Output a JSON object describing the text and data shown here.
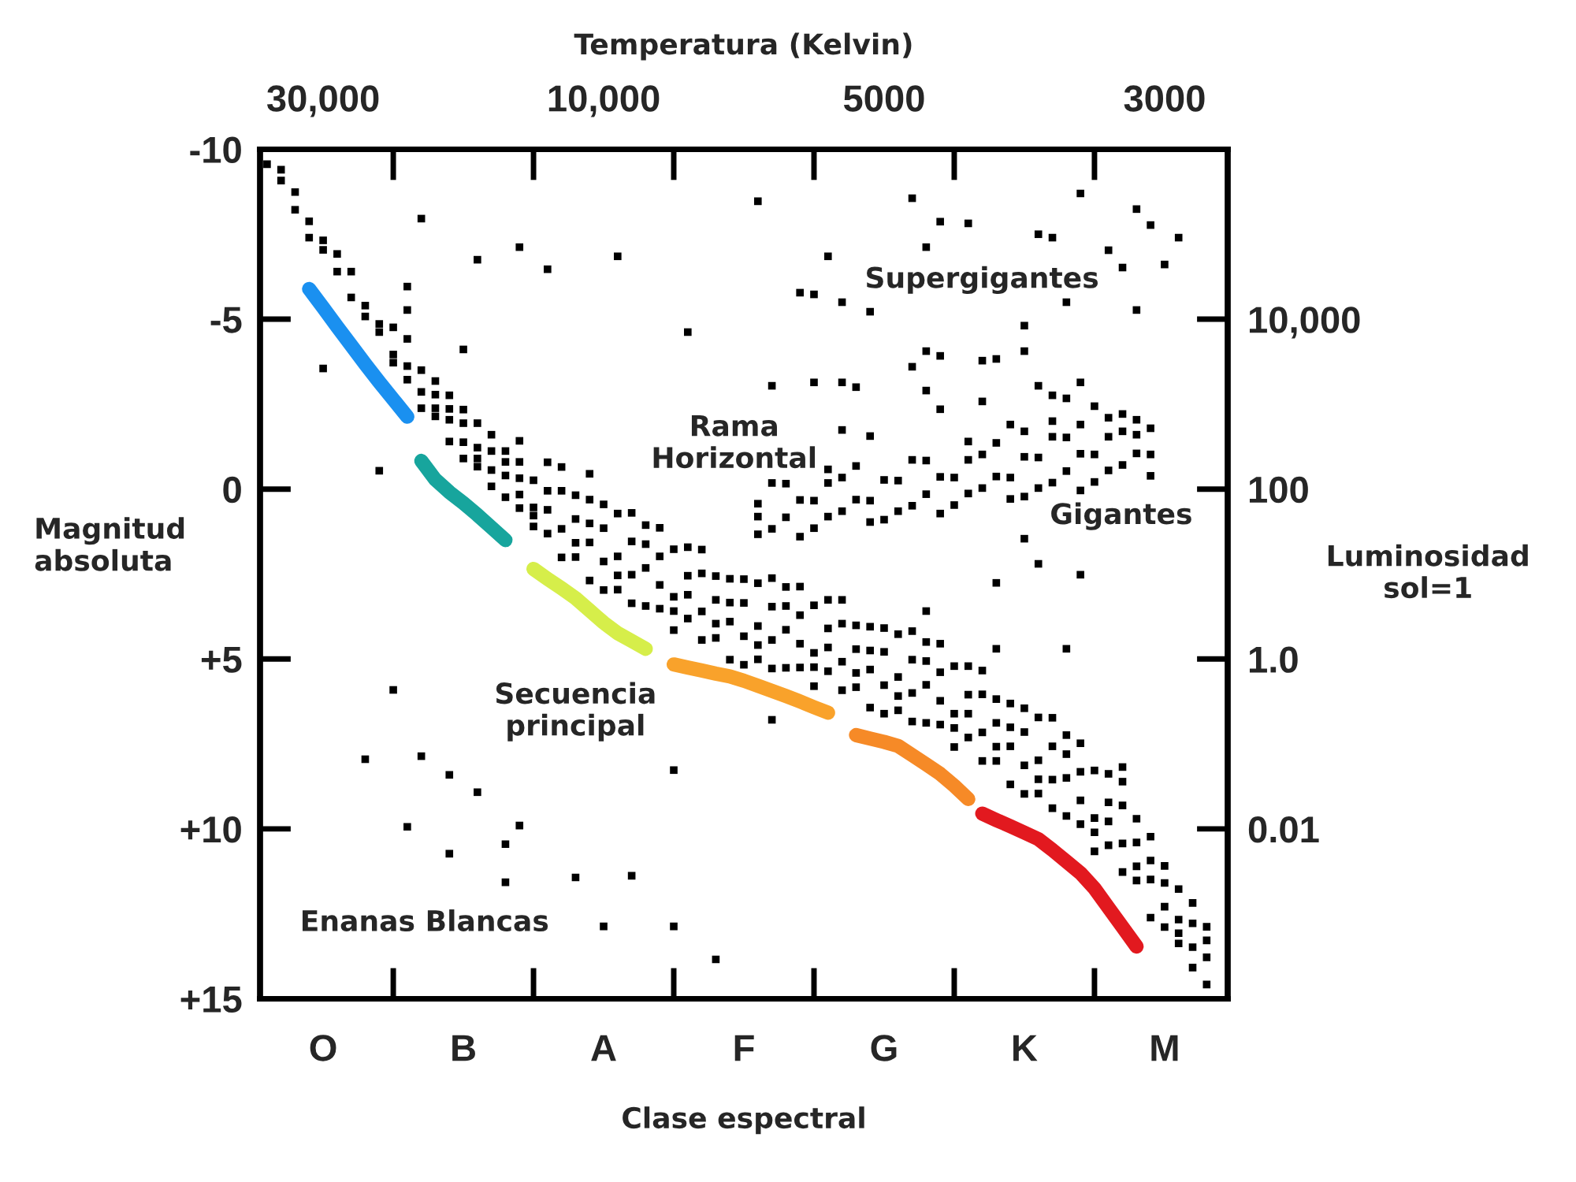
{
  "chart_data": {
    "type": "scatter",
    "x2label": "Temperatura (Kelvin)",
    "xlabel": "Clase espectral",
    "ylabel": "Magnitud\nabsoluta",
    "y2label": "Luminosidad\nsol=1",
    "categories": [
      null,
      null,
      null,
      null,
      "O",
      null,
      null,
      null,
      null,
      null,
      null,
      null,
      null,
      null,
      "B",
      null,
      null,
      null,
      null,
      null,
      null,
      null,
      null,
      null,
      "A",
      null,
      null,
      null,
      null,
      null,
      null,
      null,
      null,
      null,
      "F",
      null,
      null,
      null,
      null,
      null,
      null,
      null,
      null,
      null,
      "G",
      null,
      null,
      null,
      null,
      null,
      null,
      null,
      null,
      null,
      "K",
      null,
      null,
      null,
      null,
      null,
      null,
      null,
      null,
      null,
      "M",
      null,
      null,
      null,
      null
    ],
    "ylim": [
      15,
      -10
    ],
    "yticks": [
      -10,
      -5,
      0,
      {
        "value": 5,
        "label": "+5"
      },
      {
        "value": 10,
        "label": "+10"
      },
      {
        "value": 15,
        "label": "+15"
      }
    ],
    "y2lim": [
      0.0001,
      1000000
    ],
    "y2ticks": [
      {
        "value": 10000,
        "label": "10,000"
      },
      100,
      {
        "value": 1,
        "label": "1.0"
      },
      0.01
    ],
    "log": "y2",
    "series": [
      {
        "color": "#000000",
        "marker": "square",
        "values": [
          -9.56,
          -9.4,
          -8.22,
          -7.88,
          -7.04,
          -6.92,
          -5.64,
          -5.4,
          -4.86,
          -3.72,
          -3.62,
          -3.5,
          -2.14,
          -2.36,
          -1.38,
          -1.94,
          -0.08,
          -0.4,
          -0.32,
          0.78,
          0.61,
          0.05,
          2.0,
          1.01,
          2.13,
          0.72,
          3.36,
          2.32,
          1.98,
          3.59,
          3.11,
          2.48,
          4.38,
          3.34,
          4.33,
          2.77,
          5.28,
          4.14,
          3.71,
          5.24,
          4.66,
          3.96,
          5.83,
          4.75,
          5.77,
          4.27,
          6.84,
          5.76,
          5.39,
          7.03,
          6.61,
          6.04,
          8.0,
          7.01,
          8.13,
          6.72,
          9.39,
          8.5,
          8.32,
          10.1,
          9.78,
          9.31,
          11.52,
          10.93,
          12.29,
          11.77,
          14.08,
          13.78,
          null
        ]
      },
      {
        "color": "#000000",
        "marker": "square",
        "values": [
          null,
          -9.08,
          -8.74,
          -7.4,
          -7.32,
          -6.4,
          -6.4,
          -5.08,
          -4.62,
          -4.76,
          -4.42,
          -2.86,
          -3.18,
          -1.4,
          -1.94,
          -0.9,
          -1.6,
          0.24,
          0.16,
          -0.26,
          -0.79,
          1.17,
          0.18,
          2.69,
          1.15,
          2.54,
          0.7,
          3.44,
          2.82,
          1.77,
          1.71,
          3.6,
          2.56,
          5.02,
          3.35,
          4.59,
          2.62,
          5.26,
          4.55,
          3.42,
          3.26,
          5.08,
          4.01,
          6.43,
          4.79,
          6.09,
          4.18,
          6.88,
          6.23,
          5.21,
          5.21,
          7.16,
          6.18,
          8.69,
          7.15,
          8.54,
          6.73,
          9.62,
          9.16,
          8.28,
          8.38,
          10.43,
          9.7,
          12.61,
          11.59,
          13.07,
          12.18,
          14.58,
          null
        ]
      },
      {
        "color": "#000000",
        "marker": "square",
        "values": [
          null,
          null,
          null,
          null,
          null,
          null,
          null,
          null,
          null,
          -3.96,
          -3.22,
          -2.38,
          -2.78,
          -2.76,
          -0.9,
          -1.22,
          -1.12,
          -1.12,
          0.56,
          0.54,
          1.31,
          2.01,
          0.88,
          0.31,
          2.97,
          1.98,
          1.54,
          1.06,
          3.52,
          3.17,
          3.81,
          4.44,
          3.26,
          2.64,
          5.17,
          4.03,
          3.46,
          2.88,
          5.25,
          4.82,
          5.36,
          5.92,
          4.71,
          4.05,
          6.61,
          5.53,
          5.02,
          4.5,
          6.93,
          6.61,
          7.31,
          8.0,
          6.88,
          6.31,
          8.97,
          7.98,
          7.57,
          7.24,
          9.86,
          9.68,
          10.48,
          11.27,
          10.4,
          10.23,
          12.89,
          12.67,
          12.78,
          12.88,
          null
        ]
      },
      {
        "color": "#000000",
        "marker": "square",
        "values": [
          null,
          null,
          null,
          null,
          null,
          null,
          null,
          null,
          null,
          null,
          null,
          null,
          -2.38,
          -2.04,
          -2.34,
          -0.66,
          -0.56,
          -0.8,
          -0.8,
          1.1,
          0.05,
          -0.65,
          1.58,
          1.57,
          0.45,
          2.96,
          2.52,
          1.62,
          1.14,
          4.15,
          2.55,
          1.78,
          3.96,
          3.9,
          2.65,
          5.01,
          4.44,
          3.44,
          2.87,
          5.8,
          4.1,
          3.26,
          5.41,
          5.31,
          4.09,
          6.51,
          6.0,
          5.06,
          4.55,
          7.59,
          6.05,
          5.34,
          7.58,
          7.57,
          6.45,
          8.96,
          8.55,
          7.8,
          7.48,
          10.66,
          9.22,
          8.61,
          11.1,
          11.49,
          11.09,
          13.37,
          13.48,
          13.28,
          null
        ]
      },
      {
        "color": "#000000",
        "marker": "square",
        "values": [
          null,
          null,
          null,
          null,
          null,
          null,
          null,
          null,
          null,
          null,
          null,
          null,
          null,
          null,
          null,
          null,
          null,
          null,
          null,
          null,
          null,
          null,
          null,
          null,
          null,
          null,
          null,
          null,
          null,
          null,
          null,
          null,
          null,
          null,
          null,
          1.33,
          -0.18,
          0.83,
          0.32,
          1.15,
          0.81,
          -0.34,
          0.31,
          0.97,
          -0.27,
          0.65,
          -0.86,
          0.15,
          -0.36,
          0.47,
          0.13,
          -1.02,
          -0.37,
          0.29,
          -0.95,
          -0.03,
          -1.54,
          -0.53,
          -1.04,
          -0.21,
          -0.55,
          -1.7,
          -1.05,
          -0.39,
          null,
          null,
          null,
          null,
          null
        ]
      },
      {
        "color": "#000000",
        "marker": "square",
        "values": [
          null,
          null,
          null,
          null,
          null,
          null,
          null,
          null,
          null,
          null,
          null,
          null,
          null,
          null,
          null,
          null,
          null,
          null,
          null,
          null,
          null,
          null,
          null,
          null,
          null,
          null,
          null,
          null,
          null,
          null,
          null,
          null,
          null,
          null,
          null,
          0.43,
          1.17,
          -0.16,
          1.4,
          0.34,
          -0.18,
          0.65,
          -0.68,
          0.34,
          0.9,
          -0.25,
          0.49,
          -0.84,
          0.72,
          -0.34,
          -0.86,
          -0.03,
          -1.36,
          -0.34,
          0.22,
          -0.93,
          -0.19,
          -1.52,
          0.04,
          -1.02,
          -1.54,
          -0.71,
          -2.04,
          -1.02,
          null,
          null,
          null,
          null,
          null
        ]
      },
      {
        "color": "#000000",
        "marker": "square",
        "values": [
          null,
          null,
          null,
          null,
          -3.55,
          null,
          null,
          null,
          -0.54,
          null,
          -5.96,
          -7.96,
          null,
          null,
          -4.11,
          -6.75,
          null,
          null,
          -7.12,
          null,
          -6.47,
          null,
          null,
          -0.45,
          null,
          -6.85,
          null,
          null,
          null,
          null,
          -4.62,
          null,
          null,
          null,
          null,
          -8.47,
          -3.04,
          null,
          -5.78,
          -5.73,
          -6.85,
          -5.5,
          -3.0,
          -5.22,
          null,
          null,
          -8.56,
          -7.12,
          -7.87,
          null,
          -7.82,
          -3.78,
          -3.83,
          null,
          -4.81,
          -7.5,
          -7.4,
          -5.5,
          -8.7,
          null,
          -7.03,
          null,
          -8.24,
          -7.77,
          -6.61,
          -7.4,
          null,
          null,
          null
        ]
      },
      {
        "color": "#000000",
        "marker": "square",
        "values": [
          null,
          null,
          null,
          null,
          null,
          null,
          null,
          null,
          null,
          null,
          -5.27,
          null,
          null,
          null,
          null,
          null,
          null,
          null,
          -1.42,
          null,
          null,
          null,
          null,
          null,
          null,
          null,
          null,
          null,
          null,
          null,
          null,
          null,
          null,
          null,
          null,
          0.81,
          null,
          null,
          null,
          -3.14,
          null,
          -3.14,
          null,
          -1.56,
          null,
          null,
          -3.6,
          -4.06,
          -3.92,
          null,
          null,
          -2.58,
          null,
          null,
          -4.06,
          -3.04,
          -2.76,
          -2.67,
          -3.14,
          -2.44,
          null,
          -2.21,
          -5.27,
          -1.79,
          null,
          null,
          null,
          null,
          null
        ]
      },
      {
        "color": "#000000",
        "marker": "square",
        "values": [
          null,
          null,
          null,
          null,
          null,
          null,
          null,
          7.95,
          null,
          5.91,
          9.94,
          7.86,
          null,
          8.41,
          null,
          8.92,
          null,
          10.45,
          9.9,
          null,
          null,
          null,
          11.43,
          null,
          12.87,
          null,
          11.38,
          null,
          null,
          12.87,
          null,
          null,
          13.84,
          null,
          null,
          null,
          6.79,
          null,
          null,
          null,
          -0.58,
          null,
          null,
          null,
          null,
          null,
          null,
          -2.9,
          -2.35,
          null,
          null,
          null,
          2.76,
          null,
          1.46,
          2.2,
          null,
          4.7,
          2.52,
          null,
          null,
          8.18,
          null,
          null,
          null,
          null,
          null,
          null,
          null
        ]
      },
      {
        "color": "#000000",
        "marker": "square",
        "values": [
          null,
          null,
          null,
          null,
          null,
          null,
          null,
          null,
          null,
          null,
          null,
          null,
          null,
          10.73,
          null,
          null,
          null,
          11.57,
          null,
          null,
          null,
          null,
          null,
          null,
          null,
          null,
          null,
          null,
          null,
          8.27,
          null,
          null,
          null,
          null,
          null,
          null,
          null,
          null,
          null,
          null,
          null,
          -1.74,
          null,
          null,
          null,
          null,
          null,
          3.59,
          null,
          null,
          -1.4,
          null,
          4.7,
          -1.9,
          -1.7,
          null,
          -2.0,
          null,
          -1.9,
          null,
          -2.1,
          -6.52,
          -1.6,
          null,
          null,
          null,
          null,
          null,
          null
        ]
      },
      {
        "type": "line",
        "color": "#1a90f0",
        "marker": "none",
        "values": [
          null,
          null,
          null,
          -5.89,
          -5.34,
          -4.78,
          -4.23,
          -3.68,
          -3.15,
          -2.64,
          -2.13,
          null,
          null,
          null,
          null,
          null,
          null,
          null,
          null,
          null,
          null,
          null,
          null,
          null,
          null,
          null,
          null,
          null,
          null,
          null,
          null,
          null,
          null,
          null,
          null,
          null,
          null,
          null,
          null,
          null,
          null,
          null,
          null,
          null,
          null,
          null,
          null,
          null,
          null,
          null,
          null,
          null,
          null,
          null,
          null,
          null,
          null,
          null,
          null,
          null,
          null,
          null,
          null,
          null,
          null,
          null,
          null,
          null,
          null
        ]
      },
      {
        "type": "line",
        "color": "#17a59d",
        "marker": "none",
        "values": [
          null,
          null,
          null,
          null,
          null,
          null,
          null,
          null,
          null,
          null,
          null,
          -0.83,
          -0.28,
          0.09,
          0.41,
          0.76,
          1.13,
          1.5,
          null,
          null,
          null,
          null,
          null,
          null,
          null,
          null,
          null,
          null,
          null,
          null,
          null,
          null,
          null,
          null,
          null,
          null,
          null,
          null,
          null,
          null,
          null,
          null,
          null,
          null,
          null,
          null,
          null,
          null,
          null,
          null,
          null,
          null,
          null,
          null,
          null,
          null,
          null,
          null,
          null,
          null,
          null,
          null,
          null,
          null,
          null,
          null,
          null,
          null,
          null
        ]
      },
      {
        "type": "line",
        "color": "#d6ee4a",
        "marker": "none",
        "values": [
          null,
          null,
          null,
          null,
          null,
          null,
          null,
          null,
          null,
          null,
          null,
          null,
          null,
          null,
          null,
          null,
          null,
          null,
          null,
          2.35,
          2.64,
          2.92,
          3.21,
          3.57,
          3.93,
          4.24,
          4.47,
          4.7,
          null,
          null,
          null,
          null,
          null,
          null,
          null,
          null,
          null,
          null,
          null,
          null,
          null,
          null,
          null,
          null,
          null,
          null,
          null,
          null,
          null,
          null,
          null,
          null,
          null,
          null,
          null,
          null,
          null,
          null,
          null,
          null,
          null,
          null,
          null,
          null,
          null,
          null,
          null,
          null,
          null
        ]
      },
      {
        "type": "line",
        "color": "#f9a22b",
        "marker": "none",
        "values": [
          null,
          null,
          null,
          null,
          null,
          null,
          null,
          null,
          null,
          null,
          null,
          null,
          null,
          null,
          null,
          null,
          null,
          null,
          null,
          null,
          null,
          null,
          null,
          null,
          null,
          null,
          null,
          null,
          null,
          5.16,
          5.25,
          5.34,
          5.43,
          5.51,
          5.64,
          5.79,
          5.94,
          6.09,
          6.25,
          6.42,
          6.58,
          null,
          null,
          null,
          null,
          null,
          null,
          null,
          null,
          null,
          null,
          null,
          null,
          null,
          null,
          null,
          null,
          null,
          null,
          null,
          null,
          null,
          null,
          null,
          null,
          null,
          null,
          null,
          null
        ]
      },
      {
        "type": "line",
        "color": "#f68a27",
        "marker": "none",
        "values": [
          null,
          null,
          null,
          null,
          null,
          null,
          null,
          null,
          null,
          null,
          null,
          null,
          null,
          null,
          null,
          null,
          null,
          null,
          null,
          null,
          null,
          null,
          null,
          null,
          null,
          null,
          null,
          null,
          null,
          null,
          null,
          null,
          null,
          null,
          null,
          null,
          null,
          null,
          null,
          null,
          null,
          null,
          7.24,
          7.34,
          7.44,
          7.56,
          7.83,
          8.1,
          8.38,
          8.73,
          9.12,
          null,
          null,
          null,
          null,
          null,
          null,
          null,
          null,
          null,
          null,
          null,
          null,
          null,
          null,
          null,
          null,
          null,
          null
        ]
      },
      {
        "type": "line",
        "color": "#e2191f",
        "marker": "none",
        "values": [
          null,
          null,
          null,
          null,
          null,
          null,
          null,
          null,
          null,
          null,
          null,
          null,
          null,
          null,
          null,
          null,
          null,
          null,
          null,
          null,
          null,
          null,
          null,
          null,
          null,
          null,
          null,
          null,
          null,
          null,
          null,
          null,
          null,
          null,
          null,
          null,
          null,
          null,
          null,
          null,
          null,
          null,
          null,
          null,
          null,
          null,
          null,
          null,
          null,
          null,
          null,
          9.55,
          9.74,
          9.92,
          10.11,
          10.3,
          10.62,
          10.96,
          11.3,
          11.75,
          12.32,
          12.89,
          13.46,
          null,
          null,
          null,
          null,
          null,
          null
        ]
      }
    ],
    "annotations": [
      "30,000",
      "10,000",
      "5000",
      "3000",
      "Supergigantes",
      "Rama\nHorizontal",
      "Gigantes",
      "Secuencia\nprincipal",
      "Enanas Blancas"
    ]
  }
}
